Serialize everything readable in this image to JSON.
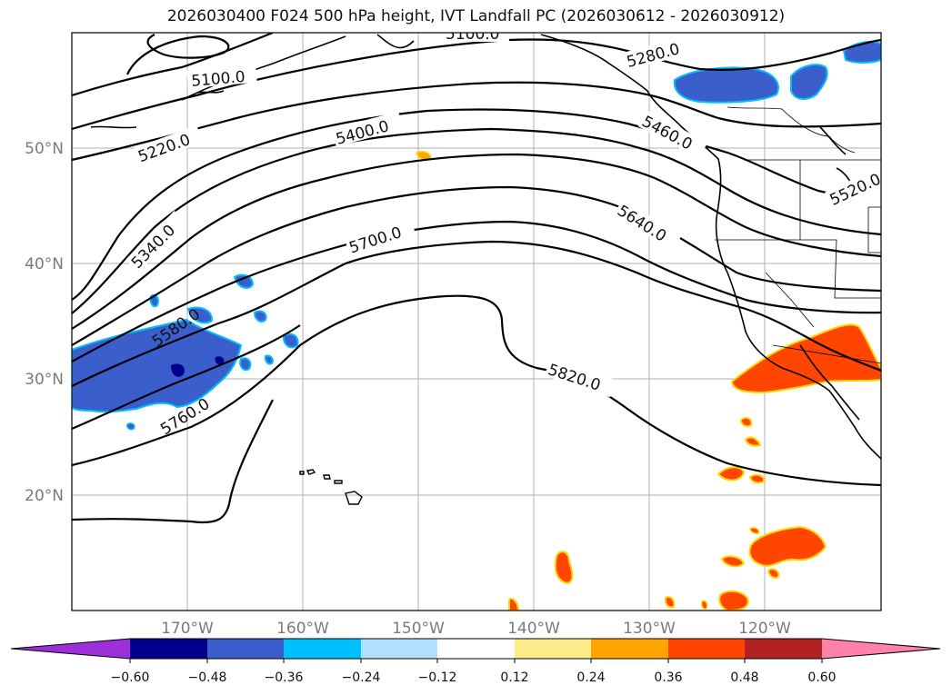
{
  "title": "2026030400 F024 500 hPa height, IVT Landfall PC (2026030612 - 2026030912)",
  "longitude_labels": [
    "170°W",
    "160°W",
    "150°W",
    "140°W",
    "130°W",
    "120°W"
  ],
  "latitude_labels": [
    "50°N",
    "40°N",
    "30°N",
    "20°N"
  ],
  "contour_labels": [
    "5100.0",
    "5100.0",
    "5220.0",
    "5280.0",
    "5340.0",
    "5400.0",
    "5460.0",
    "5520.0",
    "5580.0",
    "5640.0",
    "5700.0",
    "5760.0",
    "5820.0"
  ],
  "colorbar": {
    "ticks": [
      "−0.60",
      "−0.48",
      "−0.36",
      "−0.24",
      "−0.12",
      "0.12",
      "0.24",
      "0.36",
      "0.48",
      "0.60"
    ],
    "colors": [
      "#9b30d9",
      "#00008b",
      "#3a5fcd",
      "#00bfff",
      "#b0e2ff",
      "#ffffff",
      "#ffec8b",
      "#ffa500",
      "#ff4500",
      "#b22222",
      "#ff82ab"
    ]
  },
  "chart_data": {
    "type": "map",
    "title": "2026030400 F024 500 hPa height, IVT Landfall PC (2026030612 - 2026030912)",
    "extent": {
      "lon": [
        -180,
        -110
      ],
      "lat": [
        10,
        60
      ]
    },
    "contour_field": "500 hPa height",
    "contour_levels": [
      5100,
      5220,
      5280,
      5340,
      5400,
      5460,
      5520,
      5580,
      5640,
      5700,
      5760,
      5820
    ],
    "shaded_field": "IVT Landfall PC",
    "colorbar_levels": [
      -0.6,
      -0.48,
      -0.36,
      -0.24,
      -0.12,
      0.12,
      0.24,
      0.36,
      0.48,
      0.6
    ]
  }
}
